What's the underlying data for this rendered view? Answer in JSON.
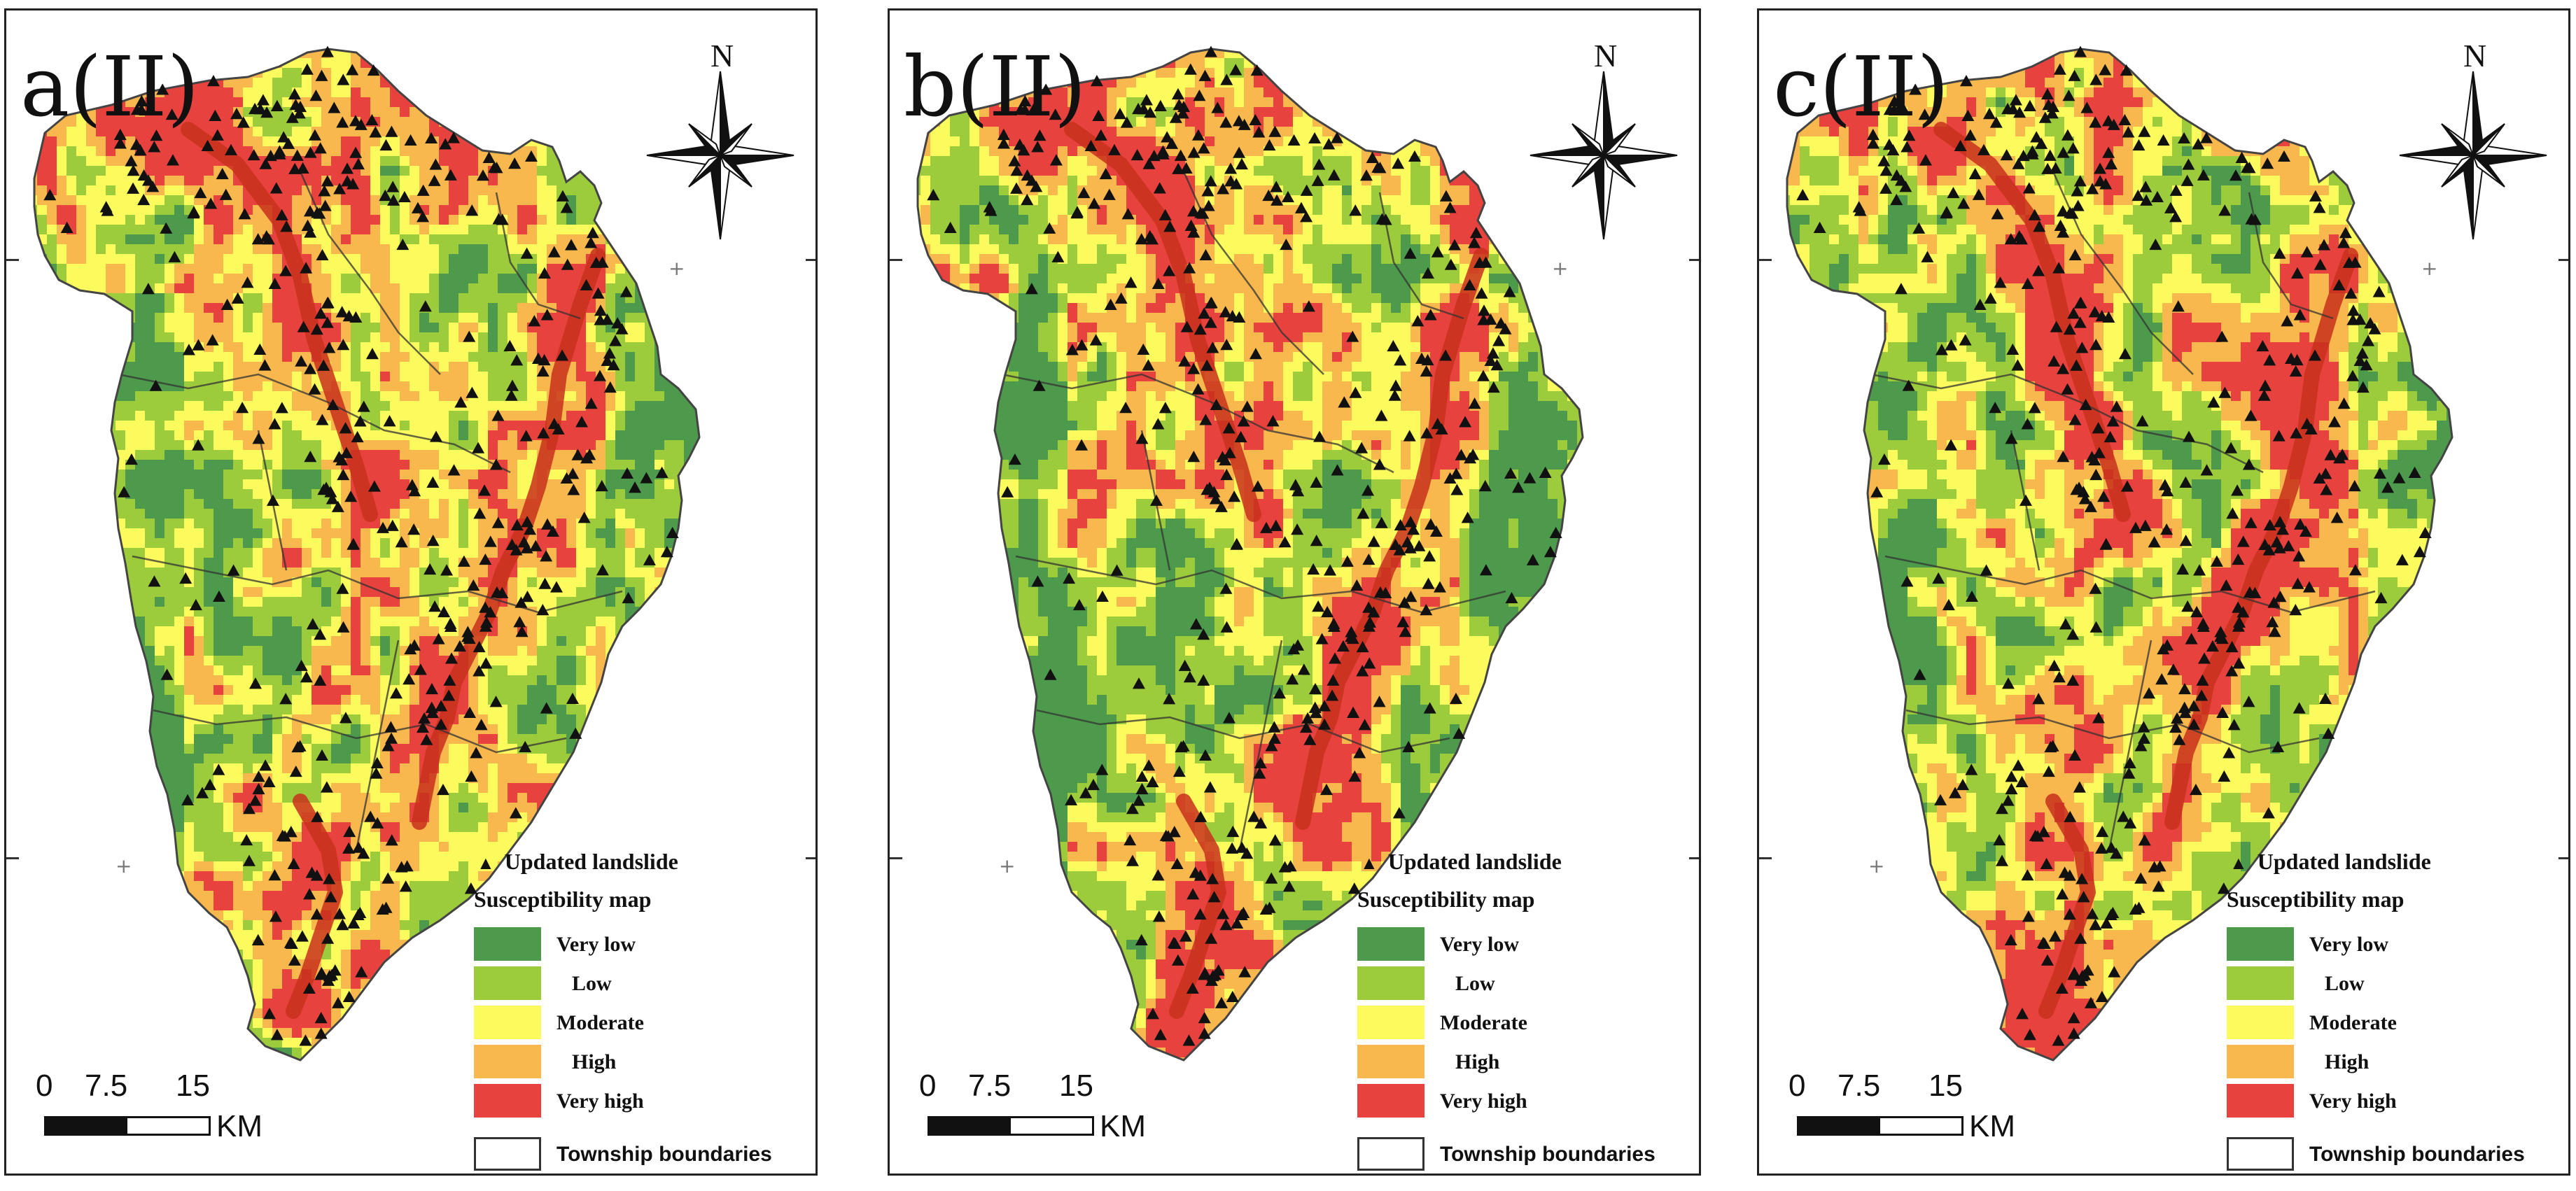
{
  "panels": [
    {
      "label": "a(II)"
    },
    {
      "label": "b(II)"
    },
    {
      "label": "c(II)"
    }
  ],
  "north_letter": "N",
  "legend": {
    "landslide_symbol": "▲",
    "landslide_label": "Updated landslide",
    "title": "Susceptibility map",
    "classes": [
      {
        "label": "Very low",
        "color": "#4e9a4c"
      },
      {
        "label": "Low",
        "color": "#9ccc3c"
      },
      {
        "label": "Moderate",
        "color": "#fbfb5e"
      },
      {
        "label": "High",
        "color": "#f8b84e"
      },
      {
        "label": "Very high",
        "color": "#e8423e"
      }
    ],
    "township_label": "Township boundaries"
  },
  "scale": {
    "ticks": [
      "0",
      "7.5",
      "15"
    ],
    "unit": "KM"
  },
  "colors": {
    "very_low": "#4e9a4c",
    "low": "#9ccc3c",
    "moderate": "#fbfb5e",
    "high": "#f8b84e",
    "very_high": "#e8423e",
    "river_red": "#c8301c",
    "landslide": "#111111"
  },
  "icons": {
    "north_arrow": "compass-star-icon",
    "landslide_point": "triangle-icon"
  }
}
